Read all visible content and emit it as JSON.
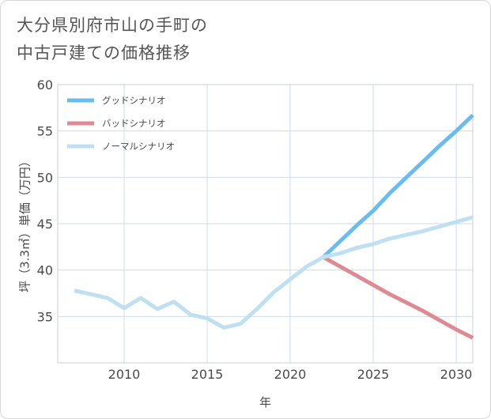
{
  "title_lines": [
    "大分県別府市山の手町の",
    "中古戸建ての価格推移"
  ],
  "chart_data": {
    "type": "line",
    "title": "大分県別府市山の手町の中古戸建ての価格推移",
    "xlabel": "年",
    "ylabel": "坪（3.3㎡）単価（万円）",
    "xlim": [
      2006,
      2031
    ],
    "ylim": [
      30,
      60
    ],
    "xticks": [
      2010,
      2015,
      2020,
      2025,
      2030
    ],
    "yticks": [
      35,
      40,
      45,
      50,
      55,
      60
    ],
    "grid": true,
    "legend_position": "top-left",
    "series": [
      {
        "name": "グッドシナリオ",
        "color": "#6bbcee",
        "x": [
          2022,
          2023,
          2024,
          2025,
          2026,
          2027,
          2028,
          2029,
          2030,
          2031
        ],
        "values": [
          41.4,
          43.1,
          44.8,
          46.4,
          48.3,
          50.0,
          51.7,
          53.4,
          55.0,
          56.7
        ]
      },
      {
        "name": "バッドシナリオ",
        "color": "#dd8a93",
        "x": [
          2022,
          2023,
          2024,
          2025,
          2026,
          2027,
          2028,
          2029,
          2030,
          2031
        ],
        "values": [
          41.4,
          40.4,
          39.4,
          38.4,
          37.4,
          36.5,
          35.6,
          34.6,
          33.6,
          32.7
        ]
      },
      {
        "name": "ノーマルシナリオ",
        "color": "#bfe0f0",
        "x": [
          2007,
          2008,
          2009,
          2010,
          2011,
          2012,
          2013,
          2014,
          2015,
          2016,
          2017,
          2018,
          2019,
          2020,
          2021,
          2022,
          2023,
          2024,
          2025,
          2026,
          2027,
          2028,
          2029,
          2030,
          2031
        ],
        "values": [
          37.8,
          37.4,
          37.0,
          35.9,
          37.0,
          35.8,
          36.6,
          35.2,
          34.8,
          33.8,
          34.2,
          35.8,
          37.6,
          39.0,
          40.4,
          41.4,
          41.8,
          42.4,
          42.8,
          43.4,
          43.8,
          44.2,
          44.7,
          45.2,
          45.7
        ]
      }
    ]
  }
}
